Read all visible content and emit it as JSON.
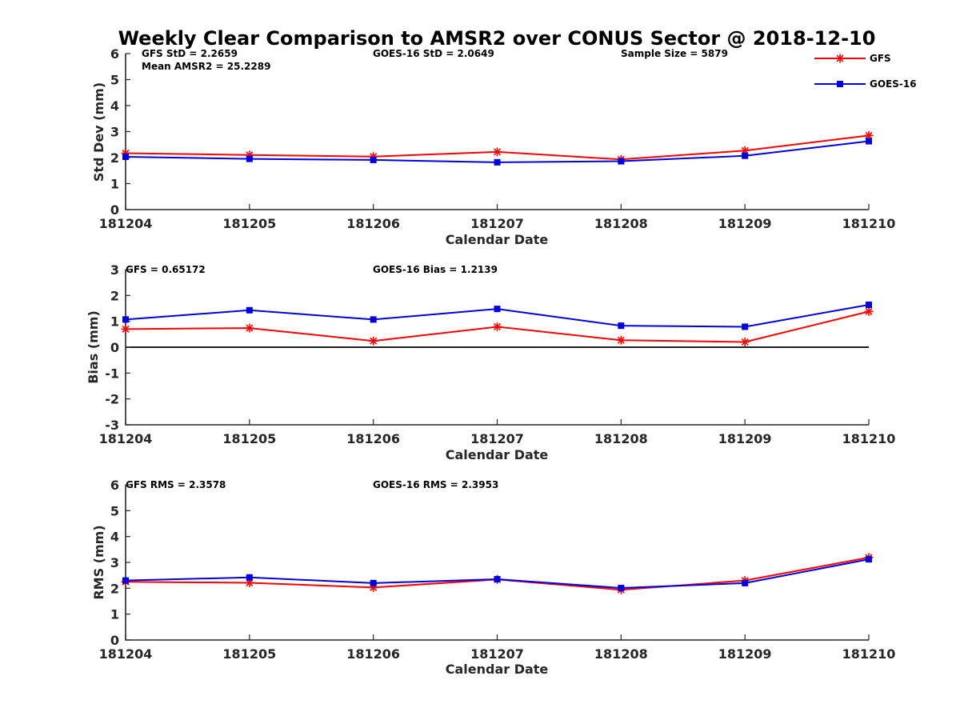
{
  "title": "Weekly Clear Comparison to AMSR2 over CONUS Sector @ 2018-12-10",
  "colors": {
    "GFS": "#ff0000",
    "GOES-16": "#0000dd",
    "axis": "#262626"
  },
  "legend": {
    "placement": "top-right",
    "entries": [
      {
        "name": "GFS",
        "color": "#ff0000",
        "marker": "asterisk"
      },
      {
        "name": "GOES-16",
        "color": "#0000dd",
        "marker": "square"
      }
    ]
  },
  "chart_data": [
    {
      "type": "line",
      "xlabel": "Calendar Date",
      "ylabel": "Std Dev (mm)",
      "categories": [
        "181204",
        "181205",
        "181206",
        "181207",
        "181208",
        "181209",
        "181210"
      ],
      "ylim": [
        0,
        6
      ],
      "yticks": [
        "0",
        "1",
        "2",
        "3",
        "4",
        "5",
        "6"
      ],
      "zero_line": false,
      "annotations": {
        "gfs": "GFS StD = 2.2659",
        "mean": "Mean AMSR2 = 25.2289",
        "goes": "GOES-16 StD = 2.0649",
        "sample": "Sample Size = 5879"
      },
      "series": [
        {
          "name": "GFS",
          "values": [
            2.17,
            2.1,
            2.04,
            2.22,
            1.93,
            2.27,
            2.85
          ]
        },
        {
          "name": "GOES-16",
          "values": [
            2.03,
            1.95,
            1.91,
            1.82,
            1.86,
            2.07,
            2.63
          ]
        }
      ]
    },
    {
      "type": "line",
      "xlabel": "Calendar Date",
      "ylabel": "Bias (mm)",
      "categories": [
        "181204",
        "181205",
        "181206",
        "181207",
        "181208",
        "181209",
        "181210"
      ],
      "ylim": [
        -3,
        3
      ],
      "yticks": [
        "-3",
        "-2",
        "-1",
        "0",
        "1",
        "2",
        "3"
      ],
      "zero_line": true,
      "annotations": {
        "gfs": "GFS = 0.65172",
        "goes": "GOES-16 Bias  = 1.2139"
      },
      "series": [
        {
          "name": "GFS",
          "values": [
            0.7,
            0.74,
            0.24,
            0.79,
            0.27,
            0.2,
            1.38
          ]
        },
        {
          "name": "GOES-16",
          "values": [
            1.07,
            1.43,
            1.07,
            1.48,
            0.83,
            0.79,
            1.64
          ]
        }
      ]
    },
    {
      "type": "line",
      "xlabel": "Calendar Date",
      "ylabel": "RMS (mm)",
      "categories": [
        "181204",
        "181205",
        "181206",
        "181207",
        "181208",
        "181209",
        "181210"
      ],
      "ylim": [
        0,
        6
      ],
      "yticks": [
        "0",
        "1",
        "2",
        "3",
        "4",
        "5",
        "6"
      ],
      "zero_line": false,
      "annotations": {
        "gfs": "GFS RMS = 2.3578",
        "goes": "GOES-16 RMS = 2.3953"
      },
      "series": [
        {
          "name": "GFS",
          "values": [
            2.25,
            2.21,
            2.03,
            2.34,
            1.94,
            2.3,
            3.19
          ]
        },
        {
          "name": "GOES-16",
          "values": [
            2.3,
            2.42,
            2.2,
            2.35,
            2.01,
            2.2,
            3.12
          ]
        }
      ]
    }
  ]
}
